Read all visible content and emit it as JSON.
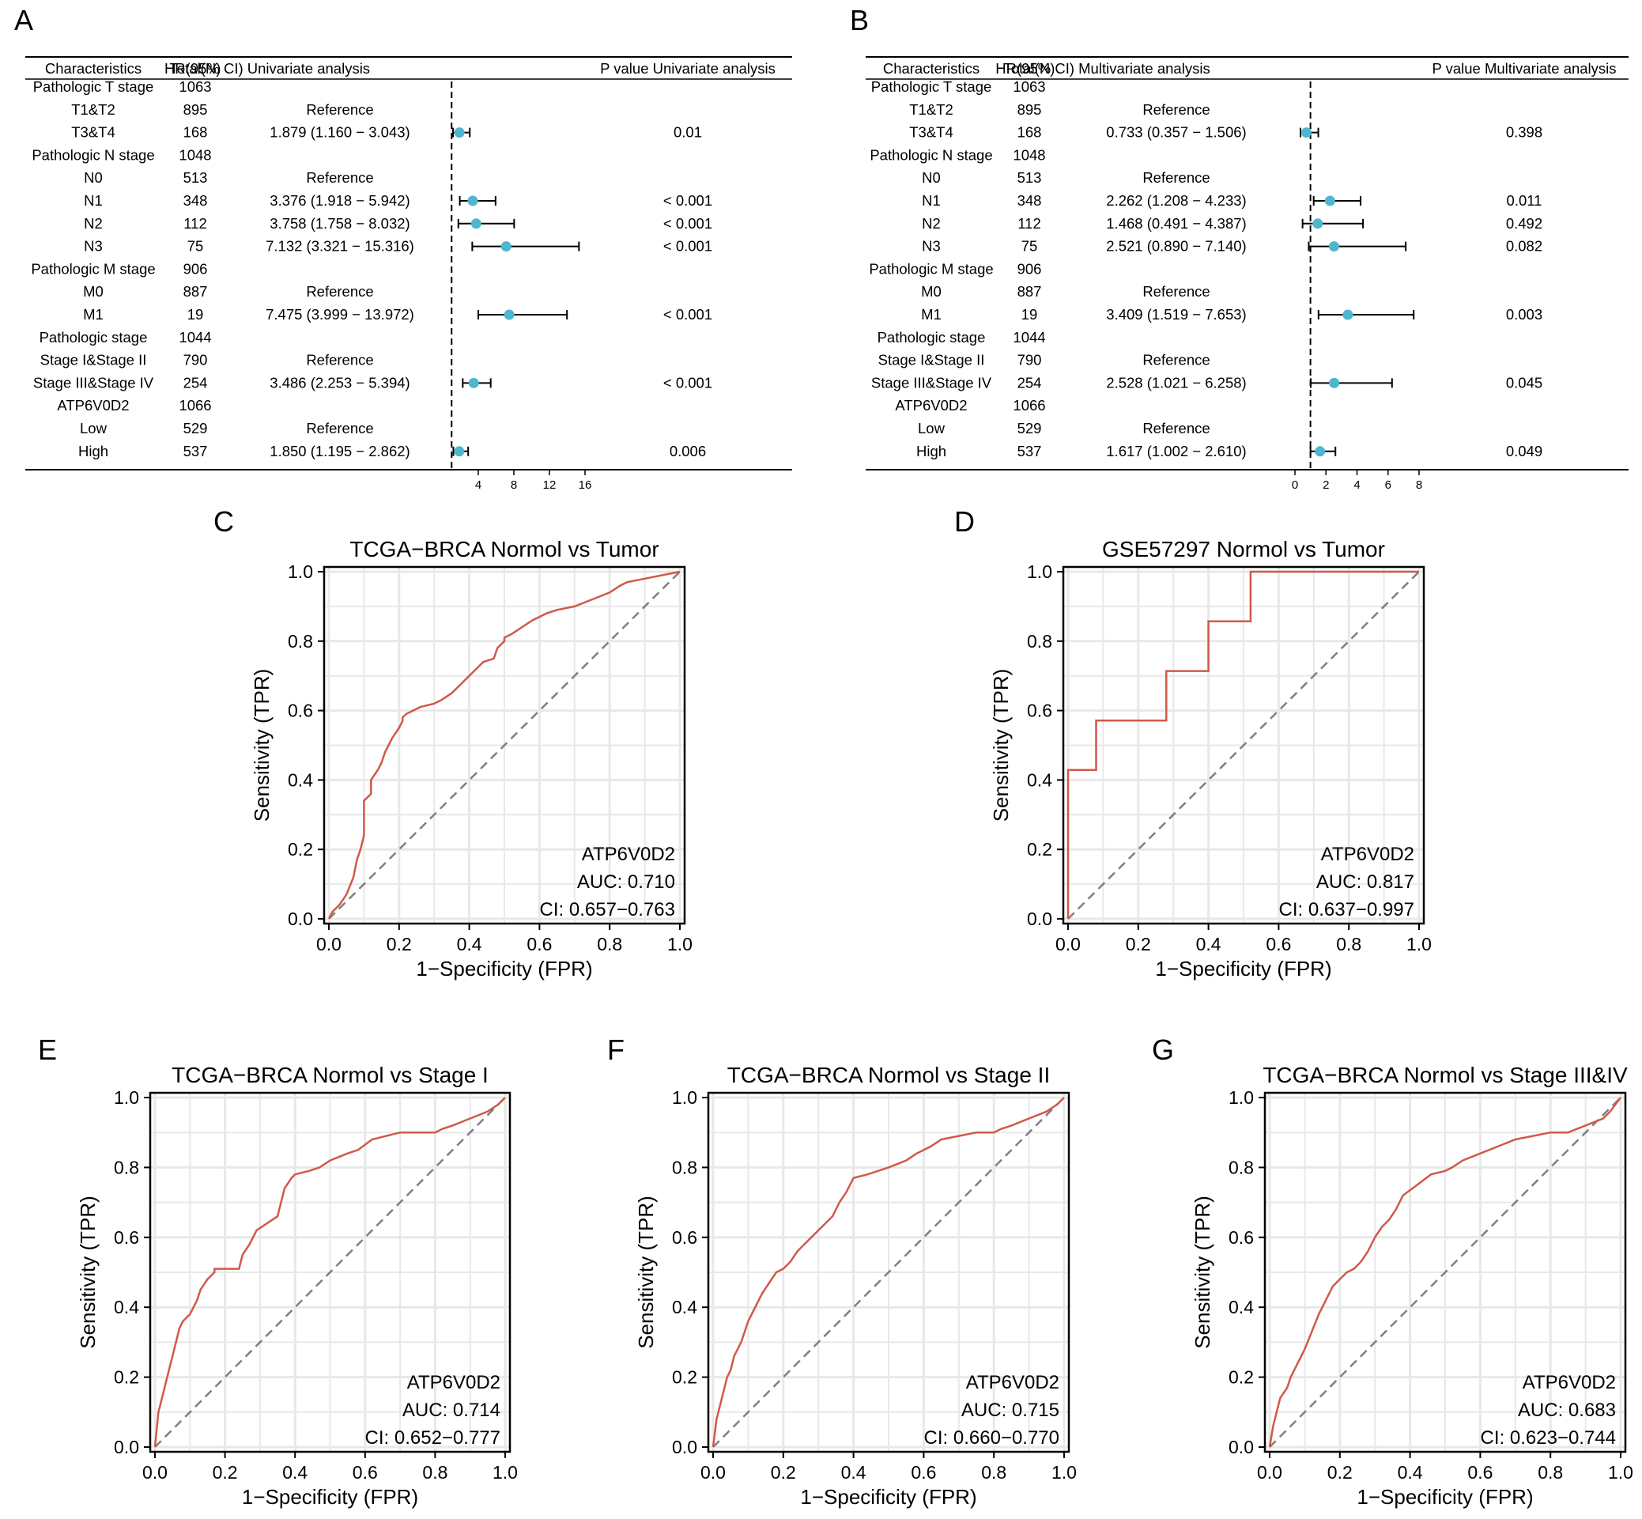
{
  "chart_data": [
    {
      "panel": "A",
      "type": "table",
      "columns": [
        "Characteristics",
        "Total(N)",
        "HR(95% CI) Univariate analysis",
        "P value Univariate analysis"
      ],
      "rows": [
        {
          "label": "Pathologic T stage",
          "n": "1063",
          "hr": "",
          "p": "",
          "est": null,
          "lo": null,
          "hi": null,
          "indent": false
        },
        {
          "label": "T1&T2",
          "n": "895",
          "hr": "Reference",
          "p": "",
          "est": null,
          "lo": null,
          "hi": null,
          "indent": true
        },
        {
          "label": "T3&T4",
          "n": "168",
          "hr": "1.879 (1.160 − 3.043)",
          "p": "0.01",
          "est": 1.879,
          "lo": 1.16,
          "hi": 3.043,
          "indent": true
        },
        {
          "label": "Pathologic N stage",
          "n": "1048",
          "hr": "",
          "p": "",
          "est": null,
          "lo": null,
          "hi": null,
          "indent": false
        },
        {
          "label": "N0",
          "n": "513",
          "hr": "Reference",
          "p": "",
          "est": null,
          "lo": null,
          "hi": null,
          "indent": true
        },
        {
          "label": "N1",
          "n": "348",
          "hr": "3.376 (1.918 − 5.942)",
          "p": "< 0.001",
          "est": 3.376,
          "lo": 1.918,
          "hi": 5.942,
          "indent": true
        },
        {
          "label": "N2",
          "n": "112",
          "hr": "3.758 (1.758 − 8.032)",
          "p": "< 0.001",
          "est": 3.758,
          "lo": 1.758,
          "hi": 8.032,
          "indent": true
        },
        {
          "label": "N3",
          "n": "75",
          "hr": "7.132 (3.321 − 15.316)",
          "p": "< 0.001",
          "est": 7.132,
          "lo": 3.321,
          "hi": 15.316,
          "indent": true
        },
        {
          "label": "Pathologic M stage",
          "n": "906",
          "hr": "",
          "p": "",
          "est": null,
          "lo": null,
          "hi": null,
          "indent": false
        },
        {
          "label": "M0",
          "n": "887",
          "hr": "Reference",
          "p": "",
          "est": null,
          "lo": null,
          "hi": null,
          "indent": true
        },
        {
          "label": "M1",
          "n": "19",
          "hr": "7.475 (3.999 − 13.972)",
          "p": "< 0.001",
          "est": 7.475,
          "lo": 3.999,
          "hi": 13.972,
          "indent": true
        },
        {
          "label": "Pathologic stage",
          "n": "1044",
          "hr": "",
          "p": "",
          "est": null,
          "lo": null,
          "hi": null,
          "indent": false
        },
        {
          "label": "Stage I&Stage II",
          "n": "790",
          "hr": "Reference",
          "p": "",
          "est": null,
          "lo": null,
          "hi": null,
          "indent": true
        },
        {
          "label": "Stage III&Stage IV",
          "n": "254",
          "hr": "3.486 (2.253 − 5.394)",
          "p": "< 0.001",
          "est": 3.486,
          "lo": 2.253,
          "hi": 5.394,
          "indent": true
        },
        {
          "label": "ATP6V0D2",
          "n": "1066",
          "hr": "",
          "p": "",
          "est": null,
          "lo": null,
          "hi": null,
          "indent": false
        },
        {
          "label": "Low",
          "n": "529",
          "hr": "Reference",
          "p": "",
          "est": null,
          "lo": null,
          "hi": null,
          "indent": true
        },
        {
          "label": "High",
          "n": "537",
          "hr": "1.850 (1.195 − 2.862)",
          "p": "0.006",
          "est": 1.85,
          "lo": 1.195,
          "hi": 2.862,
          "indent": true
        }
      ],
      "xaxis": {
        "ticks": [
          4,
          8,
          12,
          16
        ],
        "range": [
          0,
          16
        ],
        "ref_line": 1
      }
    },
    {
      "panel": "B",
      "type": "table",
      "columns": [
        "Characteristics",
        "Total(N)",
        "HR(95% CI) Multivariate analysis",
        "P value Multivariate analysis"
      ],
      "rows": [
        {
          "label": "Pathologic T stage",
          "n": "1063",
          "hr": "",
          "p": "",
          "est": null,
          "lo": null,
          "hi": null,
          "indent": false
        },
        {
          "label": "T1&T2",
          "n": "895",
          "hr": "Reference",
          "p": "",
          "est": null,
          "lo": null,
          "hi": null,
          "indent": true
        },
        {
          "label": "T3&T4",
          "n": "168",
          "hr": "0.733 (0.357 − 1.506)",
          "p": "0.398",
          "est": 0.733,
          "lo": 0.357,
          "hi": 1.506,
          "indent": true
        },
        {
          "label": "Pathologic N stage",
          "n": "1048",
          "hr": "",
          "p": "",
          "est": null,
          "lo": null,
          "hi": null,
          "indent": false
        },
        {
          "label": "N0",
          "n": "513",
          "hr": "Reference",
          "p": "",
          "est": null,
          "lo": null,
          "hi": null,
          "indent": true
        },
        {
          "label": "N1",
          "n": "348",
          "hr": "2.262 (1.208 − 4.233)",
          "p": "0.011",
          "est": 2.262,
          "lo": 1.208,
          "hi": 4.233,
          "indent": true
        },
        {
          "label": "N2",
          "n": "112",
          "hr": "1.468 (0.491 − 4.387)",
          "p": "0.492",
          "est": 1.468,
          "lo": 0.491,
          "hi": 4.387,
          "indent": true
        },
        {
          "label": "N3",
          "n": "75",
          "hr": "2.521 (0.890 − 7.140)",
          "p": "0.082",
          "est": 2.521,
          "lo": 0.89,
          "hi": 7.14,
          "indent": true
        },
        {
          "label": "Pathologic M stage",
          "n": "906",
          "hr": "",
          "p": "",
          "est": null,
          "lo": null,
          "hi": null,
          "indent": false
        },
        {
          "label": "M0",
          "n": "887",
          "hr": "Reference",
          "p": "",
          "est": null,
          "lo": null,
          "hi": null,
          "indent": true
        },
        {
          "label": "M1",
          "n": "19",
          "hr": "3.409 (1.519 − 7.653)",
          "p": "0.003",
          "est": 3.409,
          "lo": 1.519,
          "hi": 7.653,
          "indent": true
        },
        {
          "label": "Pathologic stage",
          "n": "1044",
          "hr": "",
          "p": "",
          "est": null,
          "lo": null,
          "hi": null,
          "indent": false
        },
        {
          "label": "Stage I&Stage II",
          "n": "790",
          "hr": "Reference",
          "p": "",
          "est": null,
          "lo": null,
          "hi": null,
          "indent": true
        },
        {
          "label": "Stage III&Stage IV",
          "n": "254",
          "hr": "2.528 (1.021 − 6.258)",
          "p": "0.045",
          "est": 2.528,
          "lo": 1.021,
          "hi": 6.258,
          "indent": true
        },
        {
          "label": "ATP6V0D2",
          "n": "1066",
          "hr": "",
          "p": "",
          "est": null,
          "lo": null,
          "hi": null,
          "indent": false
        },
        {
          "label": "Low",
          "n": "529",
          "hr": "Reference",
          "p": "",
          "est": null,
          "lo": null,
          "hi": null,
          "indent": true
        },
        {
          "label": "High",
          "n": "537",
          "hr": "1.617 (1.002 − 2.610)",
          "p": "0.049",
          "est": 1.617,
          "lo": 1.002,
          "hi": 2.61,
          "indent": true
        }
      ],
      "xaxis": {
        "ticks": [
          0,
          2,
          4,
          6,
          8
        ],
        "range": [
          0,
          8
        ],
        "ref_line": 1
      }
    },
    {
      "panel": "C",
      "type": "line",
      "title": "TCGA−BRCA Normol vs Tumor",
      "xlabel": "1−Specificity (FPR)",
      "ylabel": "Sensitivity (TPR)",
      "xlim": [
        0,
        1
      ],
      "ylim": [
        0,
        1
      ],
      "xticks": [
        "0.0",
        "0.2",
        "0.4",
        "0.6",
        "0.8",
        "1.0"
      ],
      "yticks": [
        "0.0",
        "0.2",
        "0.4",
        "0.6",
        "0.8",
        "1.0"
      ],
      "marker": "ATP6V0D2",
      "auc": "AUC: 0.710",
      "ci": "CI: 0.657−0.763",
      "x": [
        0,
        0.01,
        0.03,
        0.05,
        0.07,
        0.08,
        0.09,
        0.1,
        0.1,
        0.12,
        0.12,
        0.14,
        0.15,
        0.16,
        0.17,
        0.18,
        0.2,
        0.21,
        0.21,
        0.22,
        0.24,
        0.26,
        0.3,
        0.32,
        0.35,
        0.38,
        0.4,
        0.42,
        0.44,
        0.47,
        0.48,
        0.5,
        0.5,
        0.52,
        0.55,
        0.58,
        0.62,
        0.65,
        0.7,
        0.75,
        0.8,
        0.83,
        0.85,
        0.9,
        0.95,
        1.0
      ],
      "y": [
        0,
        0.02,
        0.04,
        0.07,
        0.12,
        0.17,
        0.2,
        0.24,
        0.34,
        0.36,
        0.4,
        0.43,
        0.45,
        0.48,
        0.5,
        0.52,
        0.55,
        0.57,
        0.58,
        0.59,
        0.6,
        0.61,
        0.62,
        0.63,
        0.65,
        0.68,
        0.7,
        0.72,
        0.74,
        0.75,
        0.78,
        0.8,
        0.81,
        0.82,
        0.84,
        0.86,
        0.88,
        0.89,
        0.9,
        0.92,
        0.94,
        0.96,
        0.97,
        0.98,
        0.99,
        1.0
      ]
    },
    {
      "panel": "D",
      "type": "line",
      "title": "GSE57297 Normol vs Tumor",
      "xlabel": "1−Specificity (FPR)",
      "ylabel": "Sensitivity (TPR)",
      "xlim": [
        0,
        1
      ],
      "ylim": [
        0,
        1
      ],
      "xticks": [
        "0.0",
        "0.2",
        "0.4",
        "0.6",
        "0.8",
        "1.0"
      ],
      "yticks": [
        "0.0",
        "0.2",
        "0.4",
        "0.6",
        "0.8",
        "1.0"
      ],
      "marker": "ATP6V0D2",
      "auc": "AUC: 0.817",
      "ci": "CI: 0.637−0.997",
      "x": [
        0,
        0,
        0.08,
        0.08,
        0.28,
        0.28,
        0.4,
        0.4,
        0.52,
        0.52,
        1.0
      ],
      "y": [
        0,
        0.429,
        0.429,
        0.571,
        0.571,
        0.714,
        0.714,
        0.857,
        0.857,
        1.0,
        1.0
      ]
    },
    {
      "panel": "E",
      "type": "line",
      "title": "TCGA−BRCA Normol vs Stage I",
      "xlabel": "1−Specificity (FPR)",
      "ylabel": "Sensitivity (TPR)",
      "xlim": [
        0,
        1
      ],
      "ylim": [
        0,
        1
      ],
      "xticks": [
        "0.0",
        "0.2",
        "0.4",
        "0.6",
        "0.8",
        "1.0"
      ],
      "yticks": [
        "0.0",
        "0.2",
        "0.4",
        "0.6",
        "0.8",
        "1.0"
      ],
      "marker": "ATP6V0D2",
      "auc": "AUC: 0.714",
      "ci": "CI: 0.652−0.777",
      "x": [
        0,
        0.01,
        0.02,
        0.03,
        0.04,
        0.05,
        0.06,
        0.07,
        0.08,
        0.1,
        0.12,
        0.13,
        0.15,
        0.17,
        0.17,
        0.19,
        0.24,
        0.25,
        0.27,
        0.29,
        0.32,
        0.35,
        0.36,
        0.37,
        0.39,
        0.4,
        0.44,
        0.47,
        0.5,
        0.55,
        0.58,
        0.62,
        0.7,
        0.75,
        0.8,
        0.82,
        0.85,
        0.9,
        0.95,
        0.98,
        1.0
      ],
      "y": [
        0,
        0.1,
        0.14,
        0.18,
        0.22,
        0.26,
        0.3,
        0.34,
        0.36,
        0.38,
        0.42,
        0.45,
        0.48,
        0.5,
        0.51,
        0.51,
        0.51,
        0.55,
        0.58,
        0.62,
        0.64,
        0.66,
        0.7,
        0.74,
        0.77,
        0.78,
        0.79,
        0.8,
        0.82,
        0.84,
        0.85,
        0.88,
        0.9,
        0.9,
        0.9,
        0.91,
        0.92,
        0.94,
        0.96,
        0.98,
        1.0
      ]
    },
    {
      "panel": "F",
      "type": "line",
      "title": "TCGA−BRCA Normol vs Stage II",
      "xlabel": "1−Specificity (FPR)",
      "ylabel": "Sensitivity (TPR)",
      "xlim": [
        0,
        1
      ],
      "ylim": [
        0,
        1
      ],
      "xticks": [
        "0.0",
        "0.2",
        "0.4",
        "0.6",
        "0.8",
        "1.0"
      ],
      "yticks": [
        "0.0",
        "0.2",
        "0.4",
        "0.6",
        "0.8",
        "1.0"
      ],
      "marker": "ATP6V0D2",
      "auc": "AUC: 0.715",
      "ci": "CI: 0.660−0.770",
      "x": [
        0,
        0.01,
        0.02,
        0.03,
        0.04,
        0.05,
        0.06,
        0.08,
        0.1,
        0.12,
        0.14,
        0.16,
        0.18,
        0.2,
        0.22,
        0.24,
        0.26,
        0.28,
        0.3,
        0.32,
        0.34,
        0.36,
        0.38,
        0.4,
        0.44,
        0.47,
        0.5,
        0.55,
        0.58,
        0.62,
        0.65,
        0.7,
        0.75,
        0.8,
        0.82,
        0.85,
        0.9,
        0.95,
        0.98,
        1.0
      ],
      "y": [
        0,
        0.08,
        0.12,
        0.16,
        0.2,
        0.22,
        0.26,
        0.3,
        0.36,
        0.4,
        0.44,
        0.47,
        0.5,
        0.51,
        0.53,
        0.56,
        0.58,
        0.6,
        0.62,
        0.64,
        0.66,
        0.7,
        0.73,
        0.77,
        0.78,
        0.79,
        0.8,
        0.82,
        0.84,
        0.86,
        0.88,
        0.89,
        0.9,
        0.9,
        0.91,
        0.92,
        0.94,
        0.96,
        0.98,
        1.0
      ]
    },
    {
      "panel": "G",
      "type": "line",
      "title": "TCGA−BRCA Normol vs Stage III&IV",
      "xlabel": "1−Specificity (FPR)",
      "ylabel": "Sensitivity (TPR)",
      "xlim": [
        0,
        1
      ],
      "ylim": [
        0,
        1
      ],
      "xticks": [
        "0.0",
        "0.2",
        "0.4",
        "0.6",
        "0.8",
        "1.0"
      ],
      "yticks": [
        "0.0",
        "0.2",
        "0.4",
        "0.6",
        "0.8",
        "1.0"
      ],
      "marker": "ATP6V0D2",
      "auc": "AUC: 0.683",
      "ci": "CI: 0.623−0.744",
      "x": [
        0,
        0.01,
        0.02,
        0.03,
        0.05,
        0.06,
        0.08,
        0.1,
        0.12,
        0.14,
        0.16,
        0.18,
        0.2,
        0.22,
        0.24,
        0.26,
        0.28,
        0.3,
        0.32,
        0.34,
        0.36,
        0.38,
        0.42,
        0.46,
        0.5,
        0.52,
        0.55,
        0.6,
        0.65,
        0.7,
        0.75,
        0.8,
        0.85,
        0.9,
        0.95,
        0.97,
        1.0
      ],
      "y": [
        0,
        0.06,
        0.1,
        0.14,
        0.17,
        0.2,
        0.24,
        0.28,
        0.33,
        0.38,
        0.42,
        0.46,
        0.48,
        0.5,
        0.51,
        0.53,
        0.56,
        0.6,
        0.63,
        0.65,
        0.68,
        0.72,
        0.75,
        0.78,
        0.79,
        0.8,
        0.82,
        0.84,
        0.86,
        0.88,
        0.89,
        0.9,
        0.9,
        0.92,
        0.94,
        0.96,
        1.0
      ]
    }
  ]
}
